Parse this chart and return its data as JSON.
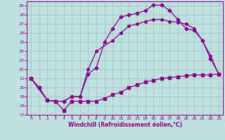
{
  "xlabel": "Windchill (Refroidissement éolien,°C)",
  "xlim": [
    -0.5,
    23.5
  ],
  "ylim": [
    17,
    29.5
  ],
  "xticks": [
    0,
    1,
    2,
    3,
    4,
    5,
    6,
    7,
    8,
    9,
    10,
    11,
    12,
    13,
    14,
    15,
    16,
    17,
    18,
    19,
    20,
    21,
    22,
    23
  ],
  "yticks": [
    17,
    18,
    19,
    20,
    21,
    22,
    23,
    24,
    25,
    26,
    27,
    28,
    29
  ],
  "bg_color": "#c0e0e0",
  "line_color": "#880088",
  "grid_color": "#a0c8c8",
  "line1_x": [
    0,
    1,
    2,
    3,
    4,
    5,
    6,
    7,
    8,
    9,
    10,
    11,
    12,
    13,
    14,
    15,
    16,
    17,
    18,
    19,
    20,
    21,
    22,
    23
  ],
  "line1_y": [
    21.0,
    20.0,
    18.6,
    18.5,
    17.5,
    18.5,
    18.5,
    18.5,
    18.5,
    18.8,
    19.2,
    19.5,
    20.0,
    20.3,
    20.6,
    20.8,
    21.0,
    21.1,
    21.2,
    21.3,
    21.4,
    21.4,
    21.4,
    21.5
  ],
  "line2_x": [
    0,
    2,
    3,
    4,
    5,
    6,
    7,
    8,
    9,
    10,
    11,
    12,
    13,
    14,
    15,
    16,
    17,
    18,
    19,
    20,
    21,
    22,
    23
  ],
  "line2_y": [
    21.0,
    18.6,
    18.5,
    18.5,
    19.0,
    19.0,
    21.5,
    22.2,
    25.0,
    26.5,
    27.8,
    28.0,
    28.2,
    28.5,
    29.1,
    29.1,
    28.5,
    27.5,
    26.5,
    26.3,
    25.2,
    23.2,
    21.5
  ],
  "line3_x": [
    0,
    2,
    3,
    4,
    5,
    6,
    7,
    8,
    10,
    11,
    12,
    13,
    14,
    15,
    16,
    17,
    18,
    19,
    20,
    21,
    22,
    23
  ],
  "line3_y": [
    21.0,
    18.6,
    18.5,
    18.5,
    19.0,
    19.0,
    22.0,
    24.0,
    25.2,
    26.0,
    26.8,
    27.0,
    27.3,
    27.5,
    27.5,
    27.3,
    27.2,
    27.0,
    26.5,
    25.2,
    23.5,
    21.5
  ]
}
